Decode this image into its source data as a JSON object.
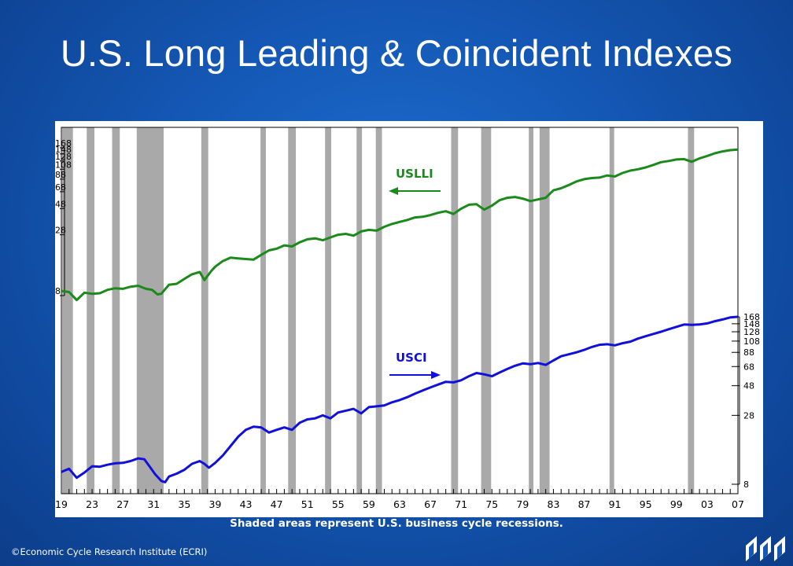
{
  "header": {
    "title": "U.S. Long Leading & Coincident Indexes"
  },
  "footer": {
    "caption": "Shaded areas represent U.S. business cycle recessions.",
    "copyright": "©Economic Cycle Research Institute (ECRI)"
  },
  "colors": {
    "usl": "#1a8a1a",
    "usci": "#1010dd",
    "recession": "#a9a9a9",
    "background": "#1457b4"
  },
  "chart_data": {
    "type": "line",
    "title": "U.S. Long Leading & Coincident Indexes",
    "x_range": [
      1919,
      2007
    ],
    "x_tick_labels": [
      "19",
      "23",
      "27",
      "31",
      "35",
      "39",
      "43",
      "47",
      "51",
      "55",
      "59",
      "63",
      "67",
      "71",
      "75",
      "79",
      "83",
      "87",
      "91",
      "95",
      "99",
      "03",
      "07"
    ],
    "y_axis_left": {
      "scale": "log",
      "tick_labels": [
        "168",
        "148",
        "128",
        "108",
        "88",
        "68",
        "48",
        "28",
        "8"
      ],
      "ylim": [
        8,
        168
      ]
    },
    "y_axis_right": {
      "scale": "log",
      "tick_labels": [
        "168",
        "148",
        "128",
        "108",
        "88",
        "68",
        "48",
        "28",
        "8"
      ],
      "ylim": [
        8,
        168
      ]
    },
    "recessions": [
      [
        1919.1,
        1920.5
      ],
      [
        1922.3,
        1923.3
      ],
      [
        1925.6,
        1926.6
      ],
      [
        1928.8,
        1932.3
      ],
      [
        1937.2,
        1938.1
      ],
      [
        1944.9,
        1945.6
      ],
      [
        1948.5,
        1949.5
      ],
      [
        1953.3,
        1954.1
      ],
      [
        1957.4,
        1958.1
      ],
      [
        1959.9,
        1960.7
      ],
      [
        1969.7,
        1970.6
      ],
      [
        1973.6,
        1974.9
      ],
      [
        1979.8,
        1980.4
      ],
      [
        1981.2,
        1982.5
      ],
      [
        1990.3,
        1990.9
      ],
      [
        2000.5,
        2001.3
      ]
    ],
    "series": [
      {
        "name": "USLLI",
        "color": "#1a8a1a",
        "x": [
          1919,
          1920,
          1921,
          1922,
          1923,
          1924,
          1925,
          1926,
          1927,
          1928,
          1929,
          1930,
          1930.8,
          1931.5,
          1932,
          1933,
          1934,
          1935,
          1936,
          1937,
          1937.6,
          1938.5,
          1939,
          1940,
          1941,
          1942,
          1943,
          1944,
          1945,
          1946,
          1947,
          1948,
          1949,
          1950,
          1951,
          1952,
          1953,
          1954,
          1955,
          1956,
          1957,
          1958,
          1959,
          1960,
          1961,
          1962,
          1963,
          1964,
          1965,
          1966,
          1967,
          1968,
          1969,
          1970,
          1971,
          1972,
          1973,
          1974,
          1975,
          1976,
          1977,
          1978,
          1979,
          1980,
          1981,
          1982,
          1983,
          1984,
          1985,
          1986,
          1987,
          1988,
          1989,
          1990,
          1991,
          1992,
          1993,
          1994,
          1995,
          1996,
          1997,
          1998,
          1999,
          2000,
          2001,
          2002,
          2003,
          2004,
          2005,
          2006,
          2007
        ],
        "values": [
          8.8,
          8.6,
          7.3,
          8.5,
          8.3,
          8.4,
          9.0,
          9.3,
          9.2,
          9.6,
          9.8,
          9.2,
          9.0,
          8.2,
          8.3,
          10.0,
          10.2,
          11.3,
          12.4,
          13.0,
          11.0,
          13.3,
          14.5,
          16.3,
          17.5,
          17.2,
          17.0,
          16.8,
          18.5,
          20.3,
          21.0,
          22.5,
          22.0,
          24.0,
          25.5,
          26.0,
          25.0,
          26.5,
          28.0,
          28.5,
          27.5,
          30.0,
          31.0,
          30.5,
          33.0,
          35.0,
          36.5,
          38.0,
          40.0,
          40.5,
          42.0,
          44.0,
          45.5,
          43.0,
          48.0,
          52.0,
          52.5,
          47.0,
          51.0,
          57.0,
          60.0,
          61.0,
          59.0,
          56.0,
          58.0,
          60.0,
          70.0,
          73.0,
          78.0,
          84.0,
          88.0,
          90.0,
          91.0,
          95.0,
          93.0,
          100.0,
          105.0,
          108.0,
          112.0,
          118.0,
          125.0,
          128.0,
          132.0,
          133.0,
          126.0,
          135.0,
          142.0,
          150.0,
          156.0,
          160.0,
          162.0
        ]
      },
      {
        "name": "USCI",
        "color": "#1010dd",
        "x": [
          1919,
          1920,
          1921,
          1922,
          1923,
          1924,
          1925,
          1926,
          1927,
          1928,
          1929,
          1929.8,
          1930.5,
          1931.2,
          1932,
          1932.5,
          1933,
          1934,
          1935,
          1936,
          1937,
          1937.6,
          1938.2,
          1939,
          1940,
          1941,
          1942,
          1943,
          1944,
          1945,
          1946,
          1947,
          1948,
          1949,
          1950,
          1951,
          1952,
          1953,
          1954,
          1955,
          1956,
          1957,
          1958,
          1959,
          1960,
          1961,
          1962,
          1963,
          1964,
          1965,
          1966,
          1967,
          1968,
          1969,
          1970,
          1971,
          1972,
          1973,
          1974,
          1975,
          1976,
          1977,
          1978,
          1979,
          1980,
          1981,
          1982,
          1983,
          1984,
          1985,
          1986,
          1987,
          1988,
          1989,
          1990,
          1991,
          1992,
          1993,
          1994,
          1995,
          1996,
          1997,
          1998,
          1999,
          2000,
          2001,
          2002,
          2003,
          2004,
          2005,
          2006,
          2007
        ],
        "values": [
          10.0,
          10.6,
          9.0,
          9.9,
          11.1,
          11.0,
          11.4,
          11.7,
          11.8,
          12.2,
          12.8,
          12.6,
          11.0,
          9.6,
          8.5,
          8.3,
          9.2,
          9.7,
          10.4,
          11.6,
          12.2,
          11.6,
          10.8,
          11.8,
          13.5,
          16.0,
          19.0,
          21.5,
          22.8,
          22.5,
          20.5,
          21.5,
          22.5,
          21.5,
          24.5,
          26.0,
          26.5,
          28.0,
          26.5,
          29.5,
          30.5,
          31.5,
          29.0,
          32.5,
          33.0,
          33.5,
          35.5,
          37.0,
          39.0,
          41.5,
          44.0,
          46.5,
          49.0,
          51.5,
          51.0,
          53.0,
          57.0,
          60.5,
          59.0,
          57.0,
          61.0,
          65.0,
          69.0,
          72.0,
          71.0,
          72.5,
          70.0,
          76.0,
          82.0,
          85.0,
          88.0,
          92.0,
          97.0,
          101.0,
          102.0,
          100.0,
          104.0,
          107.0,
          113.0,
          118.0,
          123.0,
          128.0,
          134.0,
          140.0,
          146.0,
          145.0,
          146.0,
          149.0,
          155.0,
          160.0,
          166.0,
          168.0
        ]
      }
    ],
    "annotations": [
      {
        "text": "USLLI",
        "arrow": "left",
        "color": "#1a8a1a"
      },
      {
        "text": "USCI",
        "arrow": "right",
        "color": "#1010dd"
      }
    ]
  }
}
